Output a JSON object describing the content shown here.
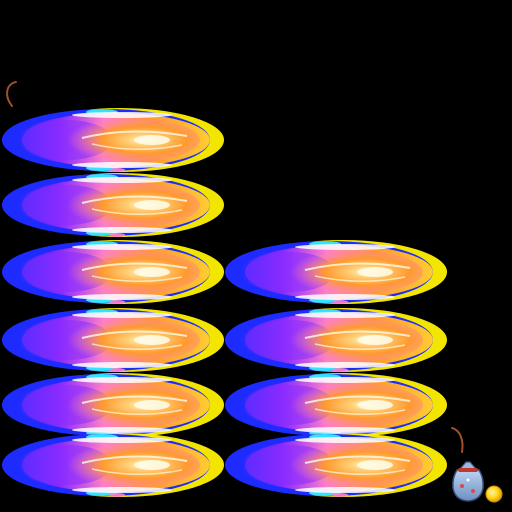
{
  "sprite_sheet": {
    "background_color": "#000000",
    "flame_colors": {
      "core": "#fffbe6",
      "orange": "#ff9a2e",
      "pink": "#ff7fc8",
      "violet": "#8a2bff",
      "blue": "#1e2bff",
      "cyan": "#39f5ff",
      "yellow": "#fff200"
    },
    "flame_frames": {
      "columns": [
        6,
        4
      ]
    },
    "items": [
      {
        "name": "money-bag-icon"
      },
      {
        "name": "gold-coin-icon",
        "color": "#ffd21a"
      }
    ],
    "fuse_marks": [
      {
        "name": "fuse-mark-top-left"
      },
      {
        "name": "fuse-mark-bag"
      }
    ]
  }
}
